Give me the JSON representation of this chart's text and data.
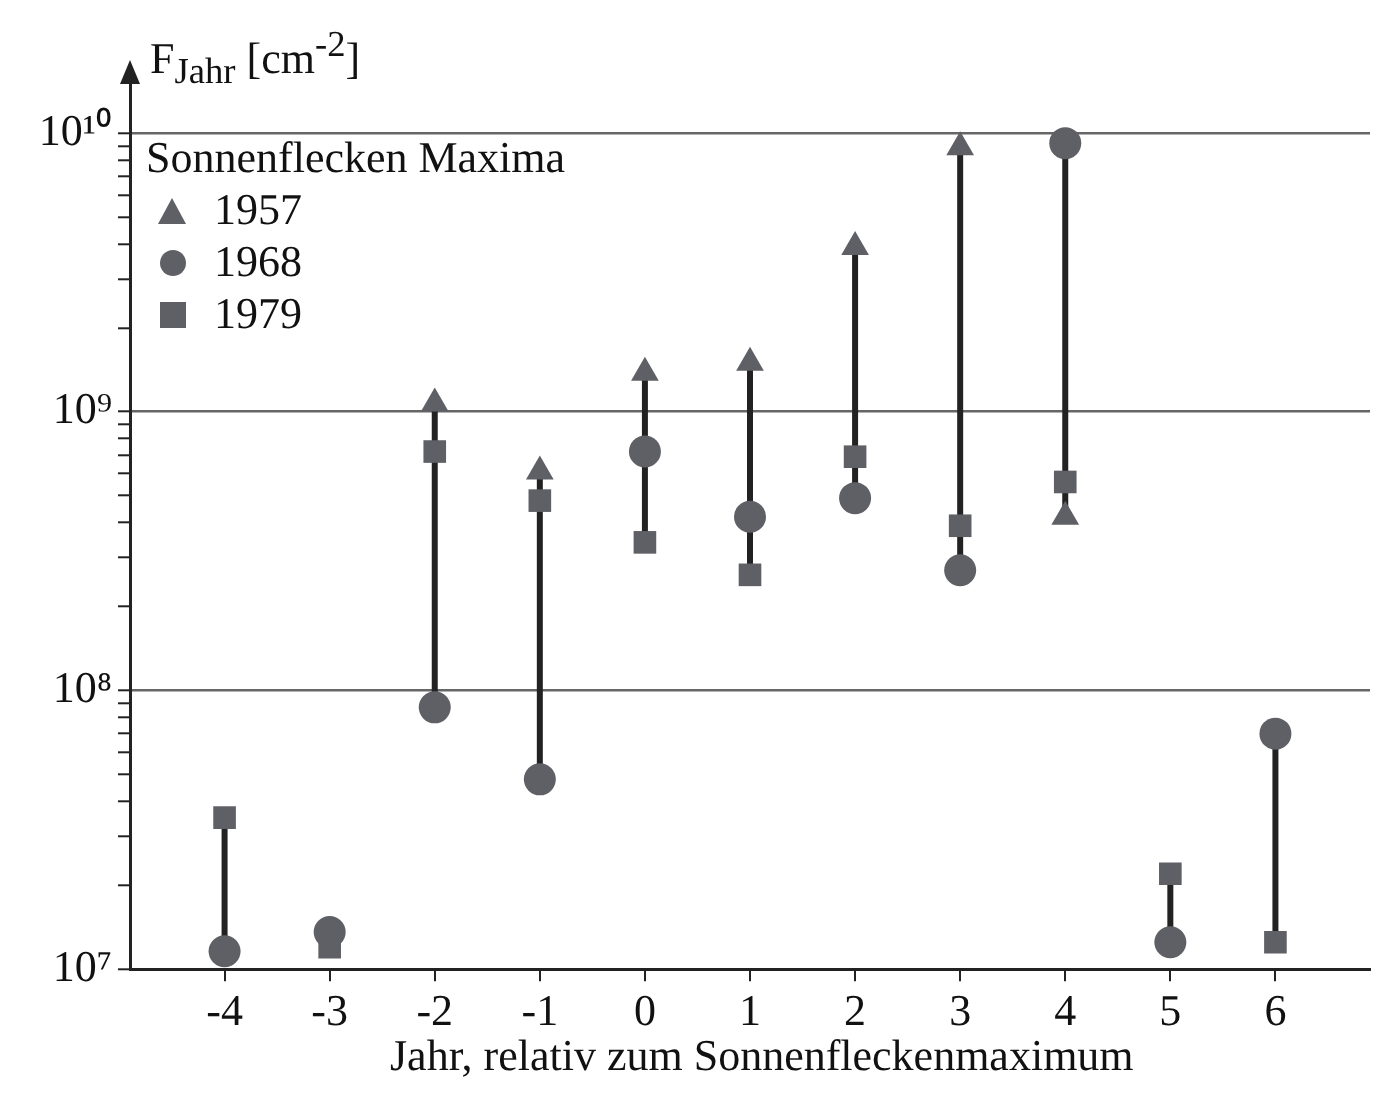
{
  "chart_data": {
    "type": "scatter",
    "ylabel": "F$_{Jahr}$ [cm$^{-2}$]",
    "xlabel": "Jahr, relativ zum Sonnenfleckenmaximum",
    "legend_title": "Sonnenflecken Maxima",
    "legend": "top left",
    "grid": "y",
    "log": "y",
    "x": [
      -4,
      -3,
      -2,
      -1,
      0,
      1,
      2,
      3,
      4,
      5,
      6
    ],
    "xlim": [
      -4.9,
      6.9
    ],
    "xticks": [
      -4,
      -3,
      -2,
      -1,
      0,
      1,
      2,
      3,
      4,
      5,
      6
    ],
    "ylim": [
      10000000,
      15000000000
    ],
    "yticks": [
      {
        "value": 10000000,
        "label": "10⁷"
      },
      {
        "value": 20000000,
        "label": null
      },
      {
        "value": 30000000,
        "label": null
      },
      {
        "value": 40000000,
        "label": null
      },
      {
        "value": 50000000,
        "label": null
      },
      {
        "value": 60000000,
        "label": null
      },
      {
        "value": 70000000,
        "label": null
      },
      {
        "value": 80000000,
        "label": null
      },
      {
        "value": 90000000,
        "label": null
      },
      {
        "value": 100000000,
        "label": "10⁸"
      },
      {
        "value": 200000000,
        "label": null
      },
      {
        "value": 300000000,
        "label": null
      },
      {
        "value": 400000000,
        "label": null
      },
      {
        "value": 500000000,
        "label": null
      },
      {
        "value": 600000000,
        "label": null
      },
      {
        "value": 700000000,
        "label": null
      },
      {
        "value": 800000000,
        "label": null
      },
      {
        "value": 900000000,
        "label": null
      },
      {
        "value": 1000000000,
        "label": "10⁹"
      },
      {
        "value": 2000000000,
        "label": null
      },
      {
        "value": 3000000000,
        "label": null
      },
      {
        "value": 4000000000,
        "label": null
      },
      {
        "value": 5000000000,
        "label": null
      },
      {
        "value": 6000000000,
        "label": null
      },
      {
        "value": 7000000000,
        "label": null
      },
      {
        "value": 8000000000,
        "label": null
      },
      {
        "value": 9000000000,
        "label": null
      },
      {
        "value": 10000000000,
        "label": "10¹⁰"
      }
    ],
    "series": [
      {
        "name": "1957",
        "color": "#5f6066",
        "marker": "triangle",
        "values": [
          null,
          null,
          1070000000,
          610000000,
          1380000000,
          1500000000,
          3900000000,
          8900000000,
          420000000,
          null,
          null
        ]
      },
      {
        "name": "1968",
        "color": "#5f6066",
        "marker": "circle",
        "values": [
          11600000,
          13600000,
          87000000,
          48000000,
          720000000,
          420000000,
          490000000,
          270000000,
          9200000000,
          12500000,
          70000000
        ]
      },
      {
        "name": "1979",
        "color": "#5f6066",
        "marker": "square",
        "values": [
          35000000,
          12000000,
          720000000,
          480000000,
          340000000,
          260000000,
          690000000,
          390000000,
          560000000,
          22000000,
          12500000
        ]
      },
      {
        "type": "line",
        "color": "#222222",
        "marker": "none",
        "x": [
          -4,
          -4
        ],
        "values": [
          11600000,
          35000000
        ]
      },
      {
        "type": "line",
        "color": "#222222",
        "marker": "none",
        "x": [
          -2,
          -2
        ],
        "values": [
          87000000,
          1070000000
        ]
      },
      {
        "type": "line",
        "color": "#222222",
        "marker": "none",
        "x": [
          -1,
          -1
        ],
        "values": [
          48000000,
          610000000
        ]
      },
      {
        "type": "line",
        "color": "#222222",
        "marker": "none",
        "x": [
          0,
          0
        ],
        "values": [
          340000000,
          1380000000
        ]
      },
      {
        "type": "line",
        "color": "#222222",
        "marker": "none",
        "x": [
          1,
          1
        ],
        "values": [
          260000000,
          1500000000
        ]
      },
      {
        "type": "line",
        "color": "#222222",
        "marker": "none",
        "x": [
          2,
          2
        ],
        "values": [
          490000000,
          3900000000
        ]
      },
      {
        "type": "line",
        "color": "#222222",
        "marker": "none",
        "x": [
          3,
          3
        ],
        "values": [
          270000000,
          8900000000
        ]
      },
      {
        "type": "line",
        "color": "#222222",
        "marker": "none",
        "x": [
          4,
          4
        ],
        "values": [
          420000000,
          9200000000
        ]
      },
      {
        "type": "line",
        "color": "#222222",
        "marker": "none",
        "x": [
          5,
          5
        ],
        "values": [
          12500000,
          22000000
        ]
      },
      {
        "type": "line",
        "color": "#222222",
        "marker": "none",
        "x": [
          6,
          6
        ],
        "values": [
          12500000,
          70000000
        ]
      }
    ]
  }
}
